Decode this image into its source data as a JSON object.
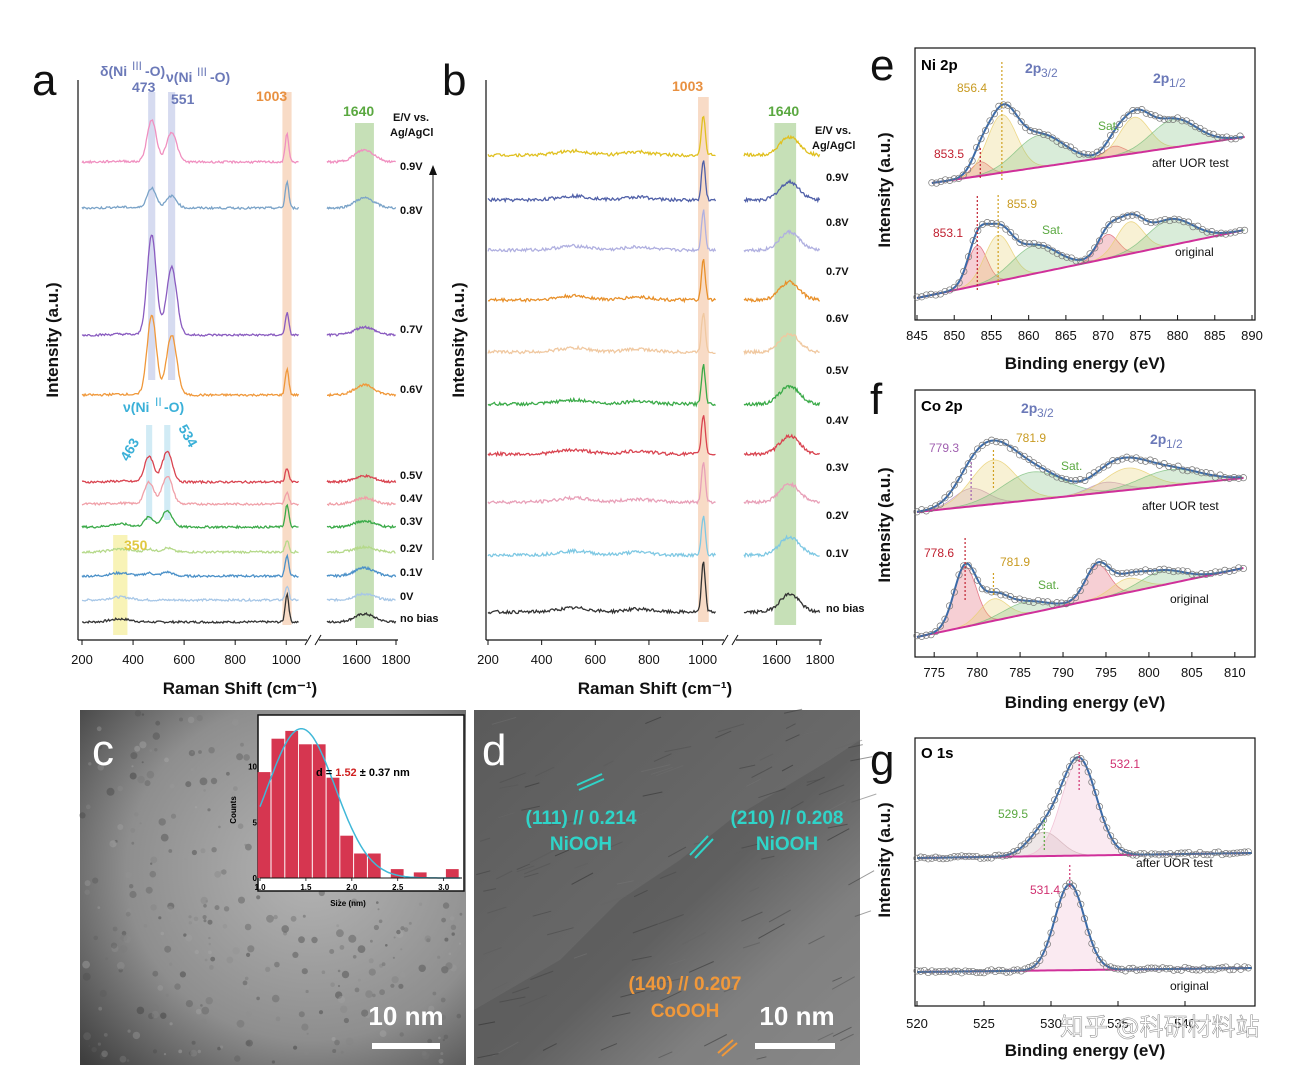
{
  "chart_data": [
    {
      "panel": "a",
      "type": "line",
      "xlabel": "Raman Shift (cm⁻¹)",
      "ylabel": "Intensity (a.u.)",
      "xlim": [
        200,
        1800
      ],
      "x_ticks": [
        "200",
        "400",
        "600",
        "800",
        "1000",
        "1600",
        "1800"
      ],
      "legend_title": "E/V vs. Ag/AgCl",
      "series": [
        {
          "name": "no bias",
          "color": "#333333"
        },
        {
          "name": "0V",
          "color": "#a7c7e7"
        },
        {
          "name": "0.1V",
          "color": "#4a90c8"
        },
        {
          "name": "0.2V",
          "color": "#b5d98a"
        },
        {
          "name": "0.3V",
          "color": "#3aaa48"
        },
        {
          "name": "0.4V",
          "color": "#f0a0a8"
        },
        {
          "name": "0.5V",
          "color": "#d94450"
        },
        {
          "name": "0.6V",
          "color": "#f0983a"
        },
        {
          "name": "0.7V",
          "color": "#8a5cc0"
        },
        {
          "name": "0.8V",
          "color": "#7aa3c8"
        },
        {
          "name": "0.9V",
          "color": "#f090c0"
        }
      ],
      "peak_bands": [
        {
          "label": "473",
          "color": "#c0c8e8"
        },
        {
          "label": "551",
          "color": "#c0c8e8"
        },
        {
          "label": "1003",
          "color": "#f5c8a8"
        },
        {
          "label": "1640",
          "color": "#a8cf90"
        },
        {
          "label": "350",
          "color": "#f5ec90"
        },
        {
          "label": "463",
          "color": "#b8e0f0"
        },
        {
          "label": "534",
          "color": "#b8e0f0"
        }
      ],
      "annotations": [
        "δ(Ni³⁺-O)",
        "ν(Ni³⁺-O)",
        "ν(Ni²⁺-O)"
      ]
    },
    {
      "panel": "b",
      "type": "line",
      "xlabel": "Raman Shift (cm⁻¹)",
      "ylabel": "Intensity (a.u.)",
      "xlim": [
        200,
        1800
      ],
      "x_ticks": [
        "200",
        "400",
        "600",
        "800",
        "1000",
        "1600",
        "1800"
      ],
      "legend_title": "E/V vs. Ag/AgCl",
      "series": [
        {
          "name": "no bias",
          "color": "#333333"
        },
        {
          "name": "0.1V",
          "color": "#7ec8e3"
        },
        {
          "name": "0.2V",
          "color": "#e8a0b8"
        },
        {
          "name": "0.3V",
          "color": "#d94450"
        },
        {
          "name": "0.4V",
          "color": "#3aaa48"
        },
        {
          "name": "0.5V",
          "color": "#f0c8a0"
        },
        {
          "name": "0.6V",
          "color": "#e8902a"
        },
        {
          "name": "0.7V",
          "color": "#b0b0e0"
        },
        {
          "name": "0.8V",
          "color": "#5060a8"
        },
        {
          "name": "0.9V",
          "color": "#e0c020"
        }
      ],
      "peak_bands": [
        {
          "label": "1003",
          "color": "#f5c8a8"
        },
        {
          "label": "1640",
          "color": "#a8cf90"
        }
      ]
    },
    {
      "panel": "e",
      "type": "line",
      "title": "Ni 2p",
      "xlabel": "Binding energy (eV)",
      "ylabel": "Intensity (a.u.)",
      "xlim": [
        845,
        890
      ],
      "x_ticks": [
        "845",
        "850",
        "855",
        "860",
        "865",
        "870",
        "875",
        "880",
        "885",
        "890"
      ],
      "labels": [
        "2p3/2",
        "2p1/2",
        "Sat.",
        "856.4",
        "853.5",
        "855.9",
        "853.1",
        "after UOR test",
        "original"
      ]
    },
    {
      "panel": "f",
      "type": "line",
      "title": "Co 2p",
      "xlabel": "Binding energy (eV)",
      "ylabel": "Intensity (a.u.)",
      "xlim": [
        773,
        812
      ],
      "x_ticks": [
        "775",
        "780",
        "785",
        "790",
        "795",
        "800",
        "805",
        "810"
      ],
      "labels": [
        "2p3/2",
        "2p1/2",
        "Sat.",
        "779.3",
        "781.9",
        "778.6",
        "781.9",
        "after UOR test",
        "original"
      ]
    },
    {
      "panel": "g",
      "type": "line",
      "title": "O 1s",
      "xlabel": "Binding energy (eV)",
      "ylabel": "Intensity (a.u.)",
      "xlim": [
        520,
        545
      ],
      "labels": [
        "529.5",
        "532.1",
        "531.4",
        "after UOR test",
        "original"
      ]
    },
    {
      "panel": "c-inset",
      "type": "bar",
      "xlabel": "Size (nm)",
      "ylabel": "Counts",
      "x": [
        1.05,
        1.2,
        1.35,
        1.5,
        1.65,
        1.8,
        1.95,
        2.1,
        2.25,
        2.5,
        2.75,
        3.1
      ],
      "values": [
        9.5,
        12.5,
        13.2,
        12,
        12,
        9,
        3.8,
        2.2,
        2.2,
        0.8,
        0.5,
        0.8
      ],
      "xlim": [
        1.0,
        3.2
      ],
      "ylim": [
        0,
        14
      ],
      "x_ticks": [
        "1.0",
        "1.5",
        "2.0",
        "2.5",
        "3.0"
      ],
      "y_ticks": [
        "0",
        "5",
        "10"
      ],
      "annotation": "d = 1.52 ± 0.37 nm"
    }
  ],
  "panel_labels": {
    "a": "a",
    "b": "b",
    "c": "c",
    "d": "d",
    "e": "e",
    "f": "f",
    "g": "g"
  },
  "tem": {
    "c_scalebar": "10 nm",
    "d_scalebar": "10 nm",
    "d_labels": [
      "(111) // 0.214",
      "NiOOH",
      "(210) // 0.208",
      "NiOOH",
      "(140) // 0.207",
      "CoOOH"
    ]
  },
  "watermark": "知乎 @科研材料站"
}
